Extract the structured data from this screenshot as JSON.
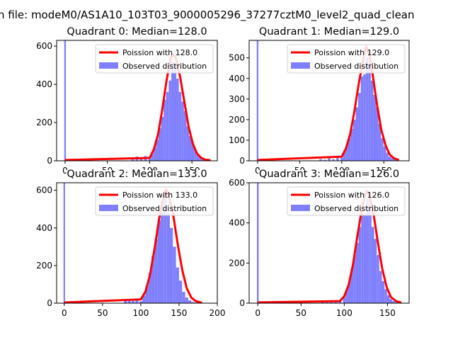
{
  "suptitle": "n file: modeM0/AS1A10_103T03_9000005296_37277cztM0_level2_quad_clean",
  "chart_data": [
    {
      "type": "bar",
      "title": "Quadrant 0: Median=128.0",
      "xlim": [
        -10,
        180
      ],
      "ylim": [
        0,
        630
      ],
      "xticks": [
        0,
        50,
        100,
        150
      ],
      "yticks": [
        0,
        200,
        400,
        600
      ],
      "legend": [
        "Poission with 128.0",
        "Observed distribution"
      ],
      "legend_position": "upper-right",
      "median": 128,
      "hist_x": [
        0,
        80,
        85,
        90,
        95,
        100,
        103,
        106,
        109,
        112,
        115,
        118,
        121,
        124,
        127,
        130,
        133,
        136,
        139,
        142,
        145,
        148,
        151,
        154,
        157,
        160,
        163,
        166
      ],
      "hist_y": [
        630,
        15,
        22,
        12,
        25,
        10,
        35,
        70,
        110,
        170,
        230,
        320,
        360,
        420,
        520,
        500,
        430,
        360,
        310,
        260,
        180,
        130,
        95,
        60,
        30,
        20,
        12,
        5
      ],
      "bin_width": 3,
      "poisson_x": [
        0,
        100,
        105,
        110,
        115,
        120,
        125,
        128,
        131,
        136,
        141,
        146,
        151,
        156,
        161,
        166,
        172
      ],
      "poisson_y": [
        4,
        15,
        60,
        140,
        270,
        420,
        540,
        555,
        540,
        440,
        310,
        180,
        90,
        38,
        15,
        6,
        3
      ]
    },
    {
      "type": "bar",
      "title": "Quadrant 1: Median=129.0",
      "xlim": [
        -10,
        180
      ],
      "ylim": [
        0,
        585
      ],
      "xticks": [
        0,
        50,
        100,
        150
      ],
      "yticks": [
        0,
        100,
        200,
        300,
        400,
        500
      ],
      "legend": [
        "Poission with 129.0",
        "Observed distribution"
      ],
      "legend_position": "upper-right",
      "median": 129,
      "hist_x": [
        0,
        75,
        80,
        85,
        90,
        95,
        100,
        103,
        106,
        109,
        112,
        115,
        118,
        121,
        124,
        127,
        130,
        133,
        136,
        139,
        142,
        145,
        148,
        151,
        154,
        157,
        160,
        163,
        166
      ],
      "hist_y": [
        585,
        8,
        5,
        12,
        8,
        20,
        15,
        40,
        80,
        110,
        155,
        200,
        260,
        330,
        410,
        420,
        500,
        470,
        390,
        320,
        260,
        180,
        110,
        70,
        40,
        20,
        12,
        6,
        3
      ],
      "bin_width": 3,
      "poisson_x": [
        0,
        100,
        105,
        110,
        115,
        120,
        125,
        129,
        133,
        137,
        142,
        147,
        152,
        157,
        162,
        168
      ],
      "poisson_y": [
        4,
        20,
        60,
        130,
        240,
        370,
        480,
        555,
        510,
        410,
        270,
        150,
        75,
        30,
        12,
        4
      ]
    },
    {
      "type": "bar",
      "title": "Quadrant 2: Median=133.0",
      "xlim": [
        -10,
        200
      ],
      "ylim": [
        0,
        640
      ],
      "xticks": [
        0,
        50,
        100,
        150,
        200
      ],
      "yticks": [
        0,
        200,
        400,
        600
      ],
      "legend": [
        "Poission with 133.0",
        "Observed distribution"
      ],
      "legend_position": "upper-right",
      "median": 133,
      "hist_x": [
        0,
        80,
        85,
        90,
        95,
        100,
        104,
        108,
        112,
        116,
        120,
        124,
        128,
        132,
        136,
        140,
        144,
        148,
        152,
        156,
        160,
        164,
        168,
        172
      ],
      "hist_y": [
        640,
        15,
        22,
        12,
        25,
        10,
        40,
        90,
        160,
        250,
        340,
        440,
        500,
        590,
        480,
        400,
        300,
        190,
        120,
        60,
        30,
        15,
        6,
        3
      ],
      "bin_width": 4,
      "poisson_x": [
        0,
        100,
        106,
        112,
        118,
        124,
        130,
        133,
        136,
        142,
        148,
        154,
        160,
        166,
        172,
        180
      ],
      "poisson_y": [
        4,
        20,
        60,
        150,
        290,
        450,
        570,
        605,
        580,
        480,
        320,
        180,
        80,
        30,
        10,
        3
      ]
    },
    {
      "type": "bar",
      "title": "Quadrant 3: Median=126.0",
      "xlim": [
        -10,
        175
      ],
      "ylim": [
        0,
        600
      ],
      "xticks": [
        0,
        50,
        100,
        150
      ],
      "yticks": [
        0,
        200,
        400,
        600
      ],
      "legend": [
        "Poission with 126.0",
        "Observed distribution"
      ],
      "legend_position": "upper-right",
      "median": 126,
      "hist_x": [
        0,
        75,
        80,
        85,
        90,
        95,
        100,
        103,
        106,
        109,
        112,
        115,
        118,
        121,
        124,
        127,
        130,
        133,
        136,
        139,
        142,
        145,
        148,
        151,
        154,
        157,
        160,
        163
      ],
      "hist_y": [
        600,
        8,
        12,
        8,
        15,
        10,
        30,
        70,
        110,
        170,
        240,
        300,
        380,
        440,
        440,
        520,
        490,
        380,
        320,
        240,
        160,
        110,
        70,
        40,
        20,
        10,
        5,
        3
      ],
      "bin_width": 3,
      "poisson_x": [
        0,
        95,
        100,
        105,
        110,
        115,
        120,
        124,
        126,
        129,
        134,
        139,
        144,
        149,
        154,
        160,
        166
      ],
      "poisson_y": [
        4,
        10,
        35,
        90,
        190,
        330,
        460,
        540,
        560,
        540,
        440,
        300,
        170,
        80,
        30,
        10,
        3
      ]
    }
  ]
}
